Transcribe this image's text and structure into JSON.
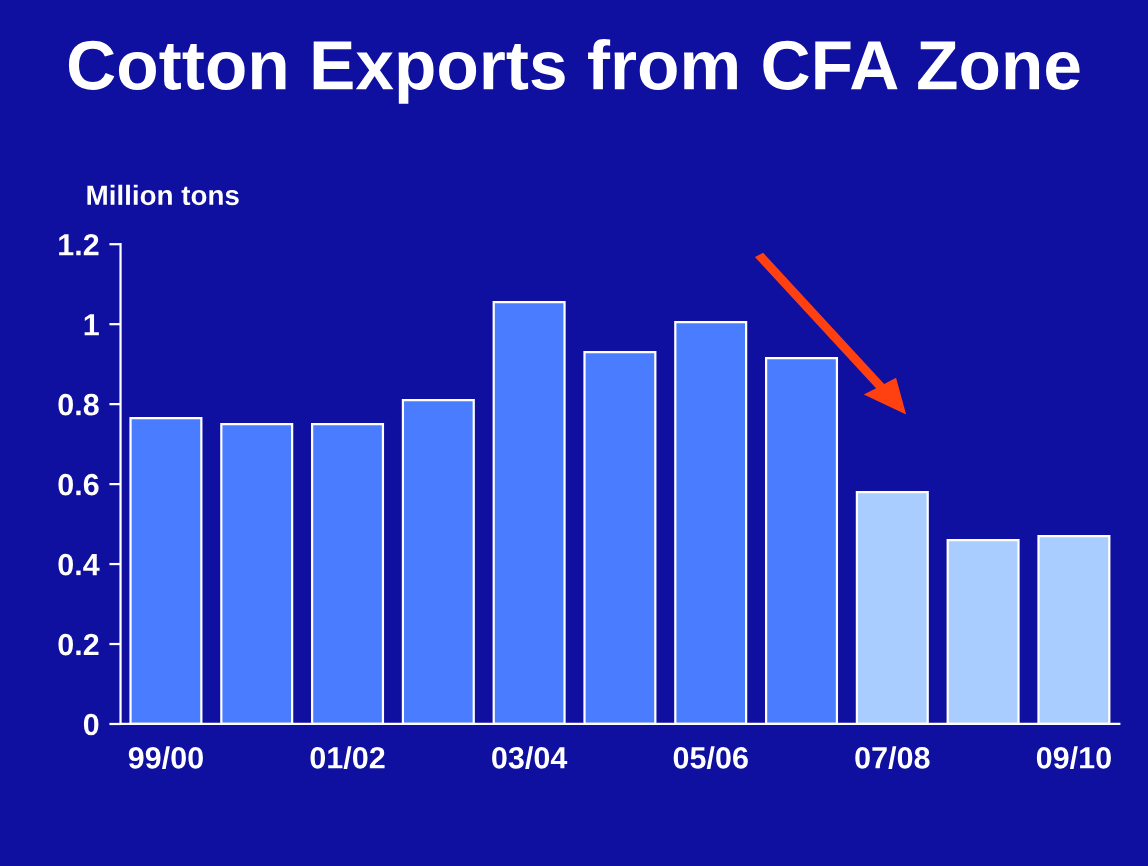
{
  "chart_data": {
    "type": "bar",
    "title": "Cotton Exports from CFA Zone",
    "ylabel": "Million tons",
    "categories": [
      "99/00",
      null,
      "01/02",
      null,
      "03/04",
      null,
      "05/06",
      null,
      "07/08",
      null,
      "09/10"
    ],
    "values": [
      0.765,
      0.75,
      0.75,
      0.81,
      1.055,
      0.93,
      1.005,
      0.915,
      0.58,
      0.46,
      0.47
    ],
    "colors": [
      "#4a7cff",
      "#4a7cff",
      "#4a7cff",
      "#4a7cff",
      "#4a7cff",
      "#4a7cff",
      "#4a7cff",
      "#4a7cff",
      "#a9cdff",
      "#a9cdff",
      "#a9cdff"
    ],
    "ylim": [
      0,
      1.2
    ],
    "yticks": [
      0,
      0.2,
      0.4,
      0.6,
      0.8,
      1,
      1.2
    ],
    "grid": false,
    "legend": false
  }
}
